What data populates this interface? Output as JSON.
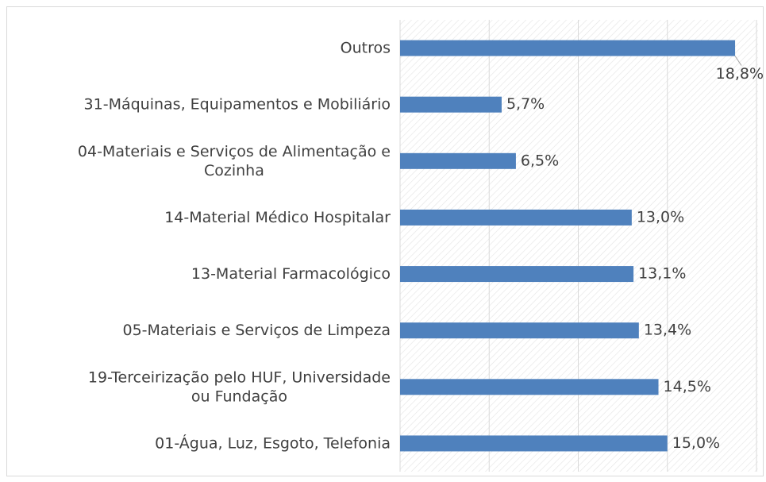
{
  "chart_data": {
    "type": "bar",
    "orientation": "horizontal",
    "categories": [
      "Outros",
      "31-Máquinas, Equipamentos e Mobiliário",
      "04-Materiais e Serviços de Alimentação e\nCozinha",
      "14-Material Médico Hospitalar",
      "13-Material Farmacológico",
      "05-Materiais e Serviços de Limpeza",
      "19-Terceirização pelo HUF, Universidade\nou Fundação",
      "01-Água, Luz, Esgoto, Telefonia"
    ],
    "values": [
      18.8,
      5.7,
      6.5,
      13.0,
      13.1,
      13.4,
      14.5,
      15.0
    ],
    "value_labels": [
      "18,8%",
      "5,7%",
      "6,5%",
      "13,0%",
      "13,1%",
      "13,4%",
      "14,5%",
      "15,0%"
    ],
    "color": "#4f81bd",
    "xlim": [
      0,
      20
    ],
    "xticks": [
      0,
      5,
      10,
      15,
      20
    ],
    "grid": true
  }
}
